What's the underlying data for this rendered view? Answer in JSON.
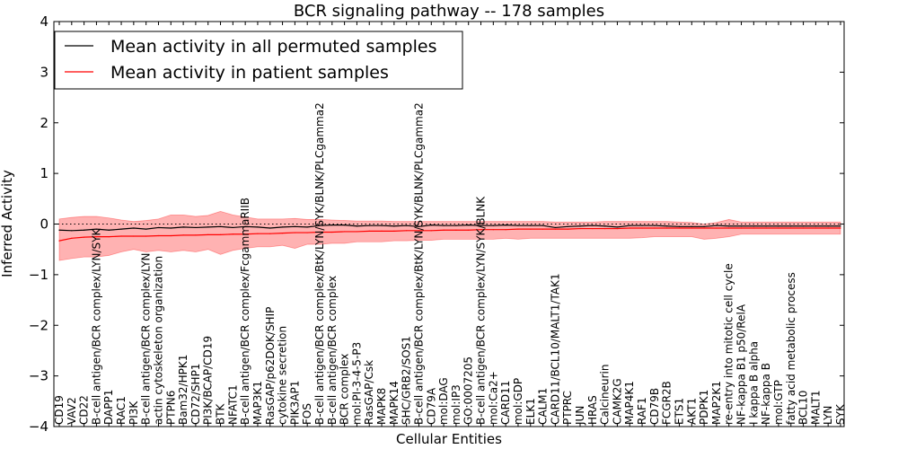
{
  "chart_data": {
    "type": "line",
    "title": "BCR signaling pathway -- 178 samples",
    "xlabel": "Cellular Entities",
    "ylabel": "Inferred Activity",
    "ylim": [
      -4,
      4
    ],
    "yticks": [
      "−4",
      "−3",
      "−2",
      "−1",
      "0",
      "1",
      "2",
      "3",
      "4"
    ],
    "ytick_values": [
      -4,
      -3,
      -2,
      -1,
      0,
      1,
      2,
      3,
      4
    ],
    "reference_line": 0,
    "colors": {
      "permuted": "#000000",
      "patient": "#ff0000",
      "band": "#ff0000"
    },
    "legend": {
      "location": "top-left",
      "entries": [
        "Mean activity in all permuted samples",
        "Mean activity in patient samples"
      ]
    },
    "categories": [
      "CD19",
      "VAV2",
      "CD22",
      "B-cell antigen/BCR complex/LYN/SYK",
      "DAPP1",
      "RAC1",
      "PI3K",
      "B-cell antigen/BCR complex/LYN",
      "actin cytoskeleton organization",
      "PTPN6",
      "Bam32/HPK1",
      "CD72/SHP1",
      "PI3K/BCAP/CD19",
      "BTK",
      "NFATC1",
      "B-cell antigen/BCR complex/FcgammaRIIB",
      "MAP3K1",
      "RasGAP/p62DOK/SHIP",
      "cytokine secretion",
      "PIK3AP1",
      "FOS",
      "B-cell antigen/BCR complex/BtK/LYN/SYK/BLNK/PLCgamma2",
      "B-cell antigen/BCR complex",
      "BCR complex",
      "mol:PI-3-4-5-P3",
      "RasGAP/Csk",
      "MAPK8",
      "MAPK14",
      "SHC/GRB2/SOS1",
      "B-cell antigen/BCR complex/BtK/LYN/SYK/BLNK/PLCgamma2",
      "CD79A",
      "mol:DAG",
      "mol:IP3",
      "GO:0007205",
      "B-cell antigen/BCR complex/LYN/SYK/BLNK",
      "mol:Ca2+",
      "CARD11",
      "mol:GDP",
      "ELK1",
      "CALM1",
      "CARD11/BCL10/MALT1/TAK1",
      "PTPRC",
      "JUN",
      "HRAS",
      "Calcineurin",
      "CAMK2G",
      "MAP4K1",
      "RAF1",
      "CD79B",
      "FCGR2B",
      "ETS1",
      "AKT1",
      "PDPK1",
      "MAP2K1",
      "re-entry into mitotic cell cycle",
      "NF-kappa B1 p50/RelA",
      "I kappa B alpha",
      "NF-kappa B",
      "mol:GTP",
      "fatty acid metabolic process",
      "BCL10",
      "MALT1",
      "LYN",
      "SYK"
    ],
    "series": [
      {
        "name": "Mean activity in all permuted samples",
        "values": [
          -0.12,
          -0.13,
          -0.12,
          -0.1,
          -0.12,
          -0.1,
          -0.08,
          -0.1,
          -0.07,
          -0.08,
          -0.06,
          -0.07,
          -0.06,
          -0.05,
          -0.07,
          -0.05,
          -0.06,
          -0.08,
          -0.06,
          -0.05,
          -0.06,
          -0.03,
          -0.02,
          -0.02,
          -0.04,
          -0.03,
          -0.03,
          -0.04,
          -0.03,
          -0.05,
          -0.02,
          -0.03,
          -0.03,
          -0.02,
          -0.03,
          -0.03,
          -0.02,
          -0.03,
          -0.03,
          -0.03,
          -0.07,
          -0.05,
          -0.04,
          -0.03,
          -0.04,
          -0.06,
          -0.03,
          -0.03,
          -0.03,
          -0.04,
          -0.05,
          -0.05,
          -0.05,
          -0.03,
          -0.04,
          -0.04,
          -0.04,
          -0.04,
          -0.04,
          -0.04,
          -0.04,
          -0.04,
          -0.04,
          -0.04
        ]
      },
      {
        "name": "Mean activity in patient samples",
        "values": [
          -0.33,
          -0.28,
          -0.26,
          -0.25,
          -0.25,
          -0.24,
          -0.24,
          -0.24,
          -0.23,
          -0.23,
          -0.22,
          -0.22,
          -0.21,
          -0.21,
          -0.2,
          -0.2,
          -0.19,
          -0.19,
          -0.18,
          -0.17,
          -0.17,
          -0.16,
          -0.16,
          -0.15,
          -0.15,
          -0.14,
          -0.14,
          -0.14,
          -0.13,
          -0.13,
          -0.13,
          -0.12,
          -0.12,
          -0.12,
          -0.11,
          -0.11,
          -0.11,
          -0.1,
          -0.1,
          -0.1,
          -0.1,
          -0.1,
          -0.09,
          -0.09,
          -0.09,
          -0.09,
          -0.08,
          -0.08,
          -0.08,
          -0.08,
          -0.08,
          -0.08,
          -0.08,
          -0.08,
          -0.08,
          -0.08,
          -0.08,
          -0.08,
          -0.08,
          -0.08,
          -0.08,
          -0.08,
          -0.08,
          -0.08
        ]
      }
    ],
    "band": {
      "name": "patient activity range",
      "upper": [
        0.1,
        0.13,
        0.15,
        0.15,
        0.12,
        0.08,
        0.05,
        0.07,
        0.1,
        0.18,
        0.18,
        0.15,
        0.17,
        0.25,
        0.18,
        0.14,
        0.1,
        0.1,
        0.1,
        0.11,
        0.09,
        0.09,
        0.08,
        0.07,
        0.06,
        0.06,
        0.06,
        0.05,
        0.05,
        0.05,
        0.05,
        0.05,
        0.05,
        0.05,
        0.05,
        0.05,
        0.05,
        0.05,
        0.05,
        0.05,
        0.04,
        0.04,
        0.04,
        0.04,
        0.05,
        0.05,
        0.05,
        0.05,
        0.05,
        0.05,
        0.04,
        0.03,
        0.0,
        0.03,
        0.09,
        0.04,
        0.04,
        0.04,
        0.04,
        0.04,
        0.04,
        0.04,
        0.04,
        0.04
      ],
      "lower": [
        -0.72,
        -0.68,
        -0.65,
        -0.65,
        -0.62,
        -0.55,
        -0.5,
        -0.55,
        -0.52,
        -0.55,
        -0.52,
        -0.55,
        -0.5,
        -0.6,
        -0.52,
        -0.48,
        -0.45,
        -0.45,
        -0.42,
        -0.48,
        -0.4,
        -0.4,
        -0.38,
        -0.38,
        -0.35,
        -0.35,
        -0.35,
        -0.33,
        -0.33,
        -0.32,
        -0.32,
        -0.3,
        -0.3,
        -0.3,
        -0.3,
        -0.3,
        -0.28,
        -0.3,
        -0.28,
        -0.28,
        -0.28,
        -0.28,
        -0.28,
        -0.28,
        -0.28,
        -0.28,
        -0.28,
        -0.27,
        -0.25,
        -0.25,
        -0.25,
        -0.25,
        -0.3,
        -0.28,
        -0.25,
        -0.2,
        -0.2,
        -0.2,
        -0.2,
        -0.2,
        -0.2,
        -0.2,
        -0.2,
        -0.2
      ]
    }
  }
}
